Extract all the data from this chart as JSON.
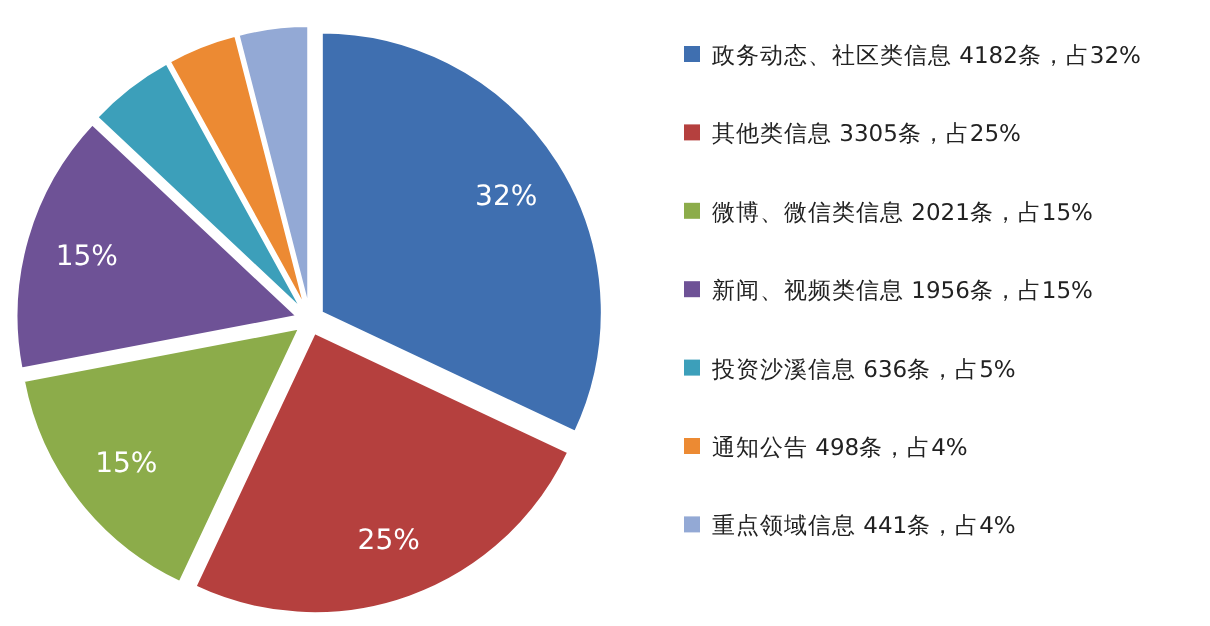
{
  "chart_data": {
    "type": "pie",
    "categories": [
      "政务动态、社区类信息 4182条，占32%",
      "其他类信息 3305条，占25%",
      "微博、微信类信息 2021条，占15%",
      "新闻、视频类信息 1956条，占15%",
      "投资沙溪信息 636条，占5%",
      "通知公告 498条，占4%",
      "重点领域信息 441条，占4%"
    ],
    "values": [
      32,
      25,
      15,
      15,
      5,
      4,
      4
    ],
    "colors": [
      "#3f6fb0",
      "#b5403e",
      "#8cac4a",
      "#6e5296",
      "#3c9fba",
      "#ec8a33",
      "#93a9d5"
    ],
    "value_labels": [
      "32%",
      "25%",
      "15%",
      "15%",
      null,
      null,
      null
    ],
    "legend": "right"
  }
}
